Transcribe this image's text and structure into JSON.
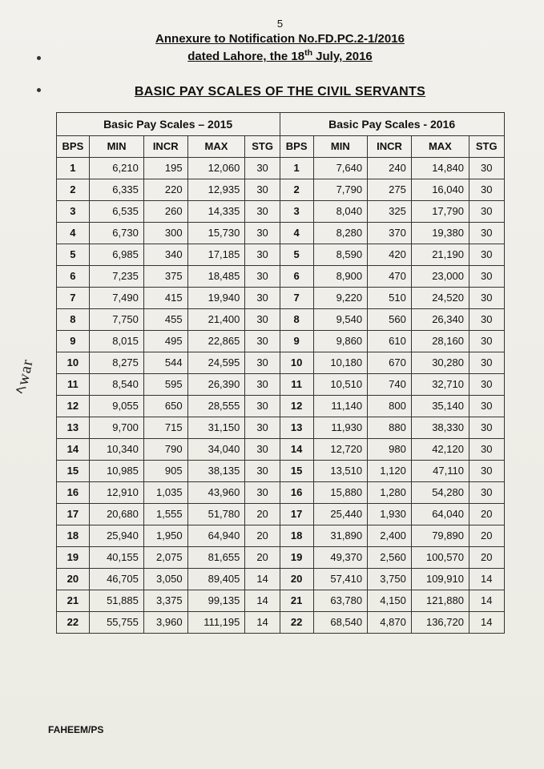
{
  "page_number": "5",
  "annex_line1": "Annexure to Notification No.FD.PC.2-1/2016",
  "annex_line2_pre": "dated Lahore, the 18",
  "annex_line2_sup": "th",
  "annex_line2_post": " July, 2016",
  "title": "BASIC PAY SCALES OF THE CIVIL SERVANTS",
  "group_left": "Basic Pay Scales – 2015",
  "group_right": "Basic Pay Scales - 2016",
  "columns": {
    "bps": "BPS",
    "min": "MIN",
    "incr": "INCR",
    "max": "MAX",
    "stg": "STG"
  },
  "rows": [
    {
      "bps": "1",
      "l": {
        "min": "6,210",
        "incr": "195",
        "max": "12,060",
        "stg": "30"
      },
      "r": {
        "min": "7,640",
        "incr": "240",
        "max": "14,840",
        "stg": "30"
      }
    },
    {
      "bps": "2",
      "l": {
        "min": "6,335",
        "incr": "220",
        "max": "12,935",
        "stg": "30"
      },
      "r": {
        "min": "7,790",
        "incr": "275",
        "max": "16,040",
        "stg": "30"
      }
    },
    {
      "bps": "3",
      "l": {
        "min": "6,535",
        "incr": "260",
        "max": "14,335",
        "stg": "30"
      },
      "r": {
        "min": "8,040",
        "incr": "325",
        "max": "17,790",
        "stg": "30"
      }
    },
    {
      "bps": "4",
      "l": {
        "min": "6,730",
        "incr": "300",
        "max": "15,730",
        "stg": "30"
      },
      "r": {
        "min": "8,280",
        "incr": "370",
        "max": "19,380",
        "stg": "30"
      }
    },
    {
      "bps": "5",
      "l": {
        "min": "6,985",
        "incr": "340",
        "max": "17,185",
        "stg": "30"
      },
      "r": {
        "min": "8,590",
        "incr": "420",
        "max": "21,190",
        "stg": "30"
      }
    },
    {
      "bps": "6",
      "l": {
        "min": "7,235",
        "incr": "375",
        "max": "18,485",
        "stg": "30"
      },
      "r": {
        "min": "8,900",
        "incr": "470",
        "max": "23,000",
        "stg": "30"
      }
    },
    {
      "bps": "7",
      "l": {
        "min": "7,490",
        "incr": "415",
        "max": "19,940",
        "stg": "30"
      },
      "r": {
        "min": "9,220",
        "incr": "510",
        "max": "24,520",
        "stg": "30"
      }
    },
    {
      "bps": "8",
      "l": {
        "min": "7,750",
        "incr": "455",
        "max": "21,400",
        "stg": "30"
      },
      "r": {
        "min": "9,540",
        "incr": "560",
        "max": "26,340",
        "stg": "30"
      }
    },
    {
      "bps": "9",
      "l": {
        "min": "8,015",
        "incr": "495",
        "max": "22,865",
        "stg": "30"
      },
      "r": {
        "min": "9,860",
        "incr": "610",
        "max": "28,160",
        "stg": "30"
      }
    },
    {
      "bps": "10",
      "l": {
        "min": "8,275",
        "incr": "544",
        "max": "24,595",
        "stg": "30"
      },
      "r": {
        "min": "10,180",
        "incr": "670",
        "max": "30,280",
        "stg": "30"
      }
    },
    {
      "bps": "11",
      "l": {
        "min": "8,540",
        "incr": "595",
        "max": "26,390",
        "stg": "30"
      },
      "r": {
        "min": "10,510",
        "incr": "740",
        "max": "32,710",
        "stg": "30"
      }
    },
    {
      "bps": "12",
      "l": {
        "min": "9,055",
        "incr": "650",
        "max": "28,555",
        "stg": "30"
      },
      "r": {
        "min": "11,140",
        "incr": "800",
        "max": "35,140",
        "stg": "30"
      }
    },
    {
      "bps": "13",
      "l": {
        "min": "9,700",
        "incr": "715",
        "max": "31,150",
        "stg": "30"
      },
      "r": {
        "min": "11,930",
        "incr": "880",
        "max": "38,330",
        "stg": "30"
      }
    },
    {
      "bps": "14",
      "l": {
        "min": "10,340",
        "incr": "790",
        "max": "34,040",
        "stg": "30"
      },
      "r": {
        "min": "12,720",
        "incr": "980",
        "max": "42,120",
        "stg": "30"
      }
    },
    {
      "bps": "15",
      "l": {
        "min": "10,985",
        "incr": "905",
        "max": "38,135",
        "stg": "30"
      },
      "r": {
        "min": "13,510",
        "incr": "1,120",
        "max": "47,110",
        "stg": "30"
      }
    },
    {
      "bps": "16",
      "l": {
        "min": "12,910",
        "incr": "1,035",
        "max": "43,960",
        "stg": "30"
      },
      "r": {
        "min": "15,880",
        "incr": "1,280",
        "max": "54,280",
        "stg": "30"
      }
    },
    {
      "bps": "17",
      "l": {
        "min": "20,680",
        "incr": "1,555",
        "max": "51,780",
        "stg": "20"
      },
      "r": {
        "min": "25,440",
        "incr": "1,930",
        "max": "64,040",
        "stg": "20"
      }
    },
    {
      "bps": "18",
      "l": {
        "min": "25,940",
        "incr": "1,950",
        "max": "64,940",
        "stg": "20"
      },
      "r": {
        "min": "31,890",
        "incr": "2,400",
        "max": "79,890",
        "stg": "20"
      }
    },
    {
      "bps": "19",
      "l": {
        "min": "40,155",
        "incr": "2,075",
        "max": "81,655",
        "stg": "20"
      },
      "r": {
        "min": "49,370",
        "incr": "2,560",
        "max": "100,570",
        "stg": "20"
      }
    },
    {
      "bps": "20",
      "l": {
        "min": "46,705",
        "incr": "3,050",
        "max": "89,405",
        "stg": "14"
      },
      "r": {
        "min": "57,410",
        "incr": "3,750",
        "max": "109,910",
        "stg": "14"
      }
    },
    {
      "bps": "21",
      "l": {
        "min": "51,885",
        "incr": "3,375",
        "max": "99,135",
        "stg": "14"
      },
      "r": {
        "min": "63,780",
        "incr": "4,150",
        "max": "121,880",
        "stg": "14"
      }
    },
    {
      "bps": "22",
      "l": {
        "min": "55,755",
        "incr": "3,960",
        "max": "111,195",
        "stg": "14"
      },
      "r": {
        "min": "68,540",
        "incr": "4,870",
        "max": "136,720",
        "stg": "14"
      }
    }
  ],
  "footer": "FAHEEM/PS",
  "margin_signature": "ﾍwar"
}
